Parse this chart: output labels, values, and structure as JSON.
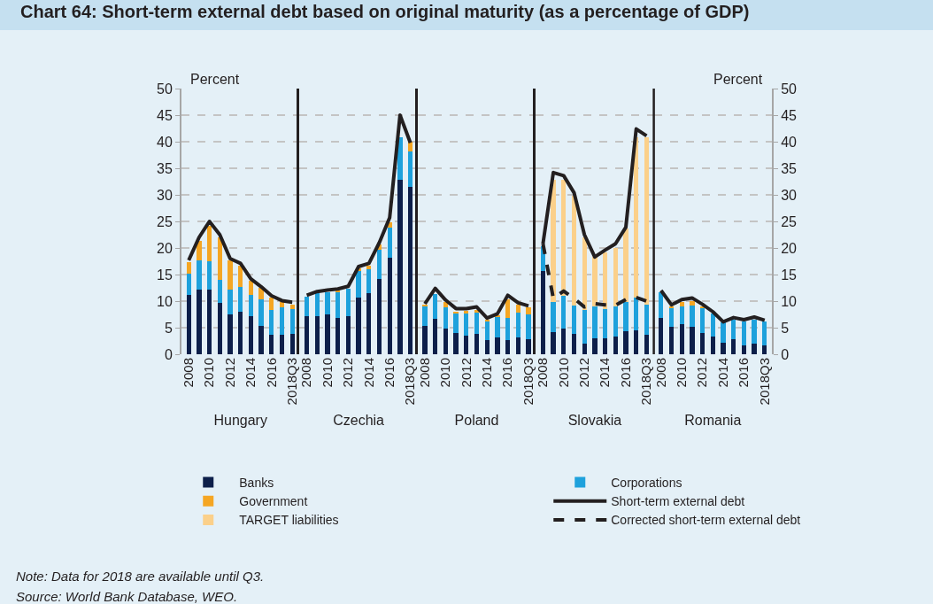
{
  "chart_data": [
    {
      "type": "bar",
      "title": "Chart 64: Short-term external debt based on original maturity (as a percentage of GDP)",
      "xlabel": "Hungary",
      "ylabel": "Percent",
      "stacked": true,
      "legend": "bottom",
      "grid": "y",
      "ylim": [
        0,
        50
      ],
      "yticks": [
        0,
        5,
        10,
        15,
        20,
        25,
        30,
        35,
        40,
        45,
        50
      ],
      "categories": [
        "2008",
        null,
        "2010",
        null,
        "2012",
        null,
        "2014",
        null,
        "2016",
        null,
        "2018Q3"
      ],
      "annotations": [
        "Note: Data for 2018 are available until Q3.",
        "Source: World Bank Database, WEO."
      ],
      "series": [
        {
          "name": "Banks",
          "color": "#0d1f4a",
          "values": [
            11.1,
            12.1,
            12.1,
            9.6,
            7.5,
            8.0,
            7.1,
            5.4,
            3.6,
            3.7,
            3.9
          ]
        },
        {
          "name": "Corporations",
          "color": "#1ea1dc",
          "values": [
            4.1,
            5.5,
            5.4,
            4.4,
            4.6,
            4.7,
            4.0,
            4.9,
            4.8,
            5.1,
            4.6
          ]
        },
        {
          "name": "Government",
          "color": "#f5a623",
          "values": [
            2.2,
            3.8,
            6.7,
            8.0,
            5.5,
            4.0,
            2.7,
            2.2,
            2.2,
            1.0,
            0.8
          ]
        },
        {
          "color": "#f5a623",
          "values": [
            null,
            null,
            null,
            null,
            null,
            null,
            null,
            null,
            null,
            null,
            null
          ]
        },
        {
          "name": "Short-term external debt",
          "type": "line",
          "color": "#231f20",
          "values": [
            17.7,
            22.0,
            25.0,
            22.5,
            18.0,
            17.1,
            14.2,
            12.7,
            11.0,
            10.1,
            9.8
          ]
        }
      ]
    },
    {
      "type": "bar",
      "xlabel": "Czechia",
      "stacked": true,
      "grid": "y",
      "tick_labels": "x",
      "ylim": [
        0,
        50
      ],
      "yticks": [
        0,
        5,
        10,
        15,
        20,
        25,
        30,
        35,
        40,
        45,
        50
      ],
      "categories": [
        "2008",
        null,
        "2010",
        null,
        "2012",
        null,
        "2014",
        null,
        "2016",
        null,
        "2018Q3"
      ],
      "series": [
        {
          "color": "#0d1f4a",
          "values": [
            7.2,
            7.1,
            7.5,
            6.9,
            7.2,
            10.6,
            11.5,
            14.1,
            18.1,
            32.9,
            31.5
          ]
        },
        {
          "color": "#1ea1dc",
          "values": [
            3.6,
            4.4,
            4.1,
            4.8,
            5.2,
            5.2,
            4.5,
            5.5,
            5.8,
            7.9,
            6.6
          ]
        },
        {
          "color": "#f5a623",
          "values": [
            null,
            null,
            null,
            0.3,
            null,
            0.3,
            0.7,
            1.0,
            0.9,
            null,
            1.9
          ]
        },
        {
          "color": "#f5a623",
          "values": [
            null,
            null,
            null,
            null,
            null,
            null,
            null,
            null,
            null,
            null,
            null
          ]
        },
        {
          "type": "line",
          "color": "#231f20",
          "values": [
            11.1,
            11.8,
            12.1,
            12.3,
            12.8,
            16.5,
            17.1,
            21.0,
            25.7,
            45.0,
            39.8
          ]
        }
      ]
    },
    {
      "type": "bar",
      "xlabel": "Poland",
      "stacked": true,
      "grid": "y",
      "tick_labels": "x",
      "ylim": [
        0,
        50
      ],
      "yticks": [
        0,
        5,
        10,
        15,
        20,
        25,
        30,
        35,
        40,
        45,
        50
      ],
      "categories": [
        "2008",
        null,
        "2010",
        null,
        "2012",
        null,
        "2014",
        null,
        "2016",
        null,
        "2018Q3"
      ],
      "series": [
        {
          "color": "#0d1f4a",
          "values": [
            5.4,
            6.7,
            4.8,
            4.0,
            3.5,
            3.8,
            2.6,
            3.1,
            2.6,
            3.1,
            2.9
          ]
        },
        {
          "color": "#1ea1dc",
          "values": [
            3.6,
            4.6,
            4.0,
            3.8,
            4.3,
            4.0,
            3.6,
            3.9,
            4.2,
            4.8,
            4.6
          ]
        },
        {
          "color": "#f5a623",
          "values": [
            0.3,
            null,
            1.0,
            0.2,
            0.3,
            0.6,
            0.3,
            0.2,
            3.6,
            1.4,
            1.3
          ]
        },
        {
          "color": "#f5a623",
          "values": [
            null,
            null,
            null,
            null,
            null,
            null,
            null,
            null,
            null,
            null,
            null
          ]
        },
        {
          "type": "line",
          "color": "#231f20",
          "values": [
            9.5,
            12.4,
            10.2,
            8.6,
            8.6,
            8.9,
            6.8,
            7.6,
            11.1,
            9.7,
            9.1
          ]
        }
      ]
    },
    {
      "type": "bar",
      "xlabel": "Slovakia",
      "stacked": true,
      "legend": "bottom",
      "grid": "y",
      "tick_labels": "x",
      "ylim": [
        0,
        50
      ],
      "yticks": [
        0,
        5,
        10,
        15,
        20,
        25,
        30,
        35,
        40,
        45,
        50
      ],
      "categories": [
        "2008",
        null,
        "2010",
        null,
        "2012",
        null,
        "2014",
        null,
        "2016",
        null,
        "2018Q3"
      ],
      "series": [
        {
          "color": "#0d1f4a",
          "values": [
            15.7,
            4.2,
            4.9,
            3.8,
            2.0,
            3.0,
            3.0,
            3.4,
            4.4,
            4.5,
            3.7
          ]
        },
        {
          "color": "#1ea1dc",
          "values": [
            4.6,
            5.6,
            6.1,
            5.3,
            6.3,
            6.0,
            5.5,
            5.6,
            5.5,
            6.2,
            5.7
          ]
        },
        {
          "color": "#f5a623",
          "values": [
            null,
            null,
            null,
            null,
            null,
            null,
            null,
            null,
            null,
            null,
            null
          ]
        },
        {
          "name": "TARGET liabilities",
          "color": "#fbd08a",
          "values": [
            null,
            23.1,
            21.9,
            20.7,
            13.7,
            9.3,
            10.7,
            11.0,
            13.8,
            30.1,
            31.4
          ]
        },
        {
          "type": "line",
          "color": "#231f20",
          "values": [
            20.8,
            34.2,
            33.6,
            30.4,
            22.5,
            18.3,
            19.6,
            20.8,
            23.9,
            42.4,
            41.1
          ]
        },
        {
          "name": "Corrected short-term external debt",
          "type": "line",
          "line_style": "dashed",
          "color": "#231f20",
          "values": [
            20.8,
            10.5,
            11.9,
            10.5,
            8.9,
            9.5,
            9.3,
            9.2,
            10.3,
            10.7,
            10.0
          ]
        }
      ]
    },
    {
      "type": "bar",
      "xlabel": "Romania",
      "ylabel": "Percent",
      "stacked": true,
      "grid": "y",
      "ylim": [
        0,
        50
      ],
      "yticks": [
        0,
        5,
        10,
        15,
        20,
        25,
        30,
        35,
        40,
        45,
        50
      ],
      "categories": [
        "2008",
        null,
        "2010",
        null,
        "2012",
        null,
        "2014",
        null,
        "2016",
        null,
        "2018Q3"
      ],
      "series": [
        {
          "color": "#0d1f4a",
          "values": [
            6.9,
            5.1,
            5.6,
            5.2,
            4.0,
            3.4,
            2.1,
            2.9,
            1.7,
            2.0,
            1.7
          ]
        },
        {
          "color": "#1ea1dc",
          "values": [
            4.8,
            3.6,
            3.4,
            4.0,
            4.6,
            4.2,
            3.9,
            3.6,
            4.4,
            4.5,
            4.5
          ]
        },
        {
          "color": "#f5a623",
          "values": [
            null,
            0.3,
            0.9,
            0.8,
            0.4,
            null,
            null,
            null,
            null,
            null,
            null
          ]
        },
        {
          "color": "#f5a623",
          "values": [
            null,
            null,
            null,
            null,
            null,
            null,
            null,
            null,
            null,
            null,
            null
          ]
        },
        {
          "type": "line",
          "color": "#231f20",
          "values": [
            12.0,
            9.3,
            10.3,
            10.6,
            9.4,
            8.0,
            6.1,
            6.9,
            6.5,
            7.0,
            6.4
          ]
        }
      ]
    }
  ]
}
